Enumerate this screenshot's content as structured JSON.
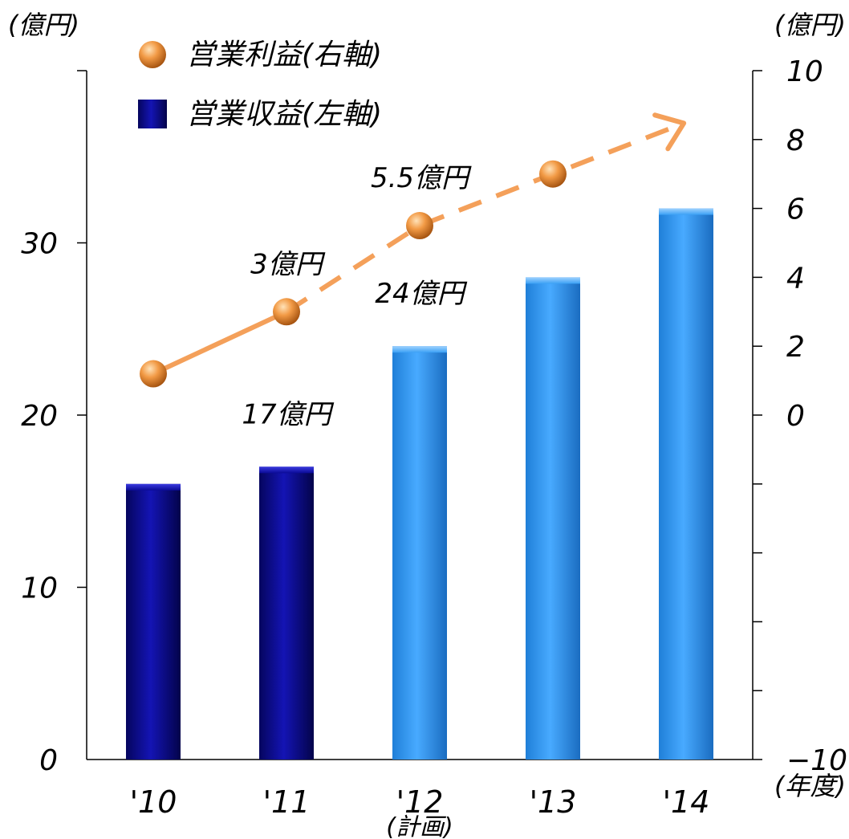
{
  "chart_data": {
    "type": "bar",
    "categories": [
      "'10",
      "'11",
      "'12",
      "'13",
      "'14"
    ],
    "category_note": "(計画)",
    "left_unit": "(億円)",
    "right_unit": "(億円)",
    "x_unit": "(年度)",
    "left_axis": {
      "ylim": [
        0,
        40
      ],
      "ticks": [
        0,
        10,
        20,
        30
      ]
    },
    "right_axis": {
      "ylim": [
        -10,
        10
      ],
      "ticks": [
        -10,
        0,
        2,
        4,
        6,
        8,
        10
      ],
      "minor_ticks": [
        -2,
        -4,
        -6,
        -8
      ]
    },
    "legend_position": "top-left",
    "colors": {
      "actual_bar": "#0a0a96",
      "plan_bar": "#3aa0f5",
      "marker": "#f08c30",
      "line": "#f4a05a"
    },
    "series": [
      {
        "name": "営業収益(左軸)",
        "kind": "bar",
        "axis": "left",
        "values": [
          16,
          17,
          24,
          28,
          32
        ],
        "plan_flags": [
          false,
          false,
          true,
          true,
          true
        ]
      },
      {
        "name": "営業利益(右軸)",
        "kind": "line",
        "axis": "right",
        "values": [
          1.2,
          3,
          5.5,
          7,
          null
        ]
      }
    ],
    "bar_labels": [
      {
        "index": 1,
        "text": "17億円"
      },
      {
        "index": 2,
        "text": "24億円"
      }
    ],
    "point_labels": [
      {
        "index": 1,
        "text": "3億円"
      },
      {
        "index": 2,
        "text": "5.5億円"
      }
    ]
  }
}
